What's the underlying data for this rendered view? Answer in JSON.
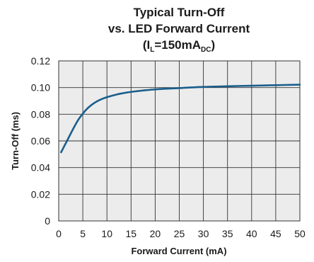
{
  "chart_data": {
    "type": "line",
    "title": {
      "line1": "Typical Turn-Off",
      "line2": "vs. LED Forward Current",
      "line3_prefix": "(I",
      "line3_sub1": "L",
      "line3_mid": "=150mA",
      "line3_sub2": "DC",
      "line3_suffix": ")"
    },
    "xlabel": "Forward Current (mA)",
    "ylabel": "Turn-Off (ms)",
    "xlim": [
      0,
      50
    ],
    "ylim": [
      0,
      0.12
    ],
    "xticks": [
      0,
      5,
      10,
      15,
      20,
      25,
      30,
      35,
      40,
      45,
      50
    ],
    "xtick_labels": [
      "0",
      "5",
      "10",
      "15",
      "20",
      "25",
      "30",
      "35",
      "40",
      "45",
      "50"
    ],
    "yticks": [
      0,
      0.02,
      0.04,
      0.06,
      0.08,
      0.1,
      0.12
    ],
    "ytick_labels": [
      "0",
      "0.02",
      "0.04",
      "0.06",
      "0.08",
      "0.10",
      "0.12"
    ],
    "grid": true,
    "colors": {
      "line": "#1a5e8c",
      "plot_background": "#ececec",
      "grid": "#333333"
    },
    "series": [
      {
        "x": [
          0.5,
          1,
          2,
          3,
          4,
          5,
          6,
          7,
          8,
          9,
          10,
          12,
          14,
          16,
          18,
          20,
          22,
          25,
          30,
          35,
          40,
          45,
          50
        ],
        "y": [
          0.0515,
          0.055,
          0.062,
          0.069,
          0.0755,
          0.0805,
          0.0845,
          0.0875,
          0.0898,
          0.0915,
          0.0928,
          0.0948,
          0.0962,
          0.0972,
          0.098,
          0.0986,
          0.0991,
          0.0996,
          0.1005,
          0.101,
          0.1014,
          0.1018,
          0.1022
        ]
      }
    ]
  }
}
